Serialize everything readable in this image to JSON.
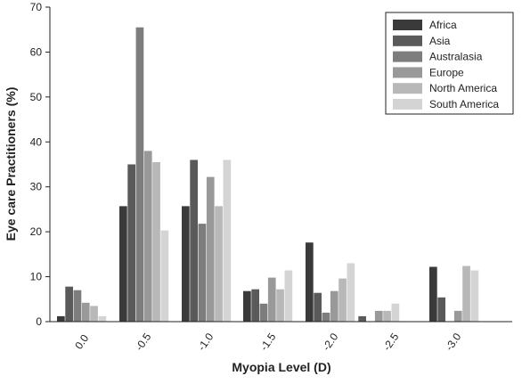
{
  "chart_data": {
    "type": "bar",
    "xlabel": "Myopia Level (D)",
    "ylabel": "Eye care Practitioners (%)",
    "ylim": [
      0,
      70
    ],
    "yticks": [
      0,
      10,
      20,
      30,
      40,
      50,
      60,
      70
    ],
    "grid": false,
    "legend_position": "top-right",
    "categories": [
      "0.0",
      "-0.5",
      "-1.0",
      "-1.5",
      "-2.0",
      "-2.5",
      "-3.0"
    ],
    "series": [
      {
        "name": "Africa",
        "color": "#3a3a3a",
        "values": [
          1.2,
          25.7,
          25.7,
          6.8,
          17.6,
          0,
          12.2
        ]
      },
      {
        "name": "Asia",
        "color": "#5a5a5a",
        "values": [
          7.8,
          35.0,
          36.0,
          7.2,
          6.4,
          1.2,
          5.4
        ]
      },
      {
        "name": "Australasia",
        "color": "#7d7d7d",
        "values": [
          7.0,
          65.5,
          21.8,
          4.0,
          2.0,
          0,
          0
        ]
      },
      {
        "name": "Europe",
        "color": "#999999",
        "values": [
          4.2,
          38.0,
          32.2,
          9.8,
          6.8,
          2.4,
          2.4
        ]
      },
      {
        "name": "North America",
        "color": "#b8b8b8",
        "values": [
          3.5,
          35.5,
          25.7,
          7.2,
          9.6,
          2.4,
          12.4
        ]
      },
      {
        "name": "South America",
        "color": "#d4d4d4",
        "values": [
          1.2,
          20.3,
          36.0,
          11.4,
          13.0,
          4.0,
          11.4
        ]
      }
    ]
  }
}
